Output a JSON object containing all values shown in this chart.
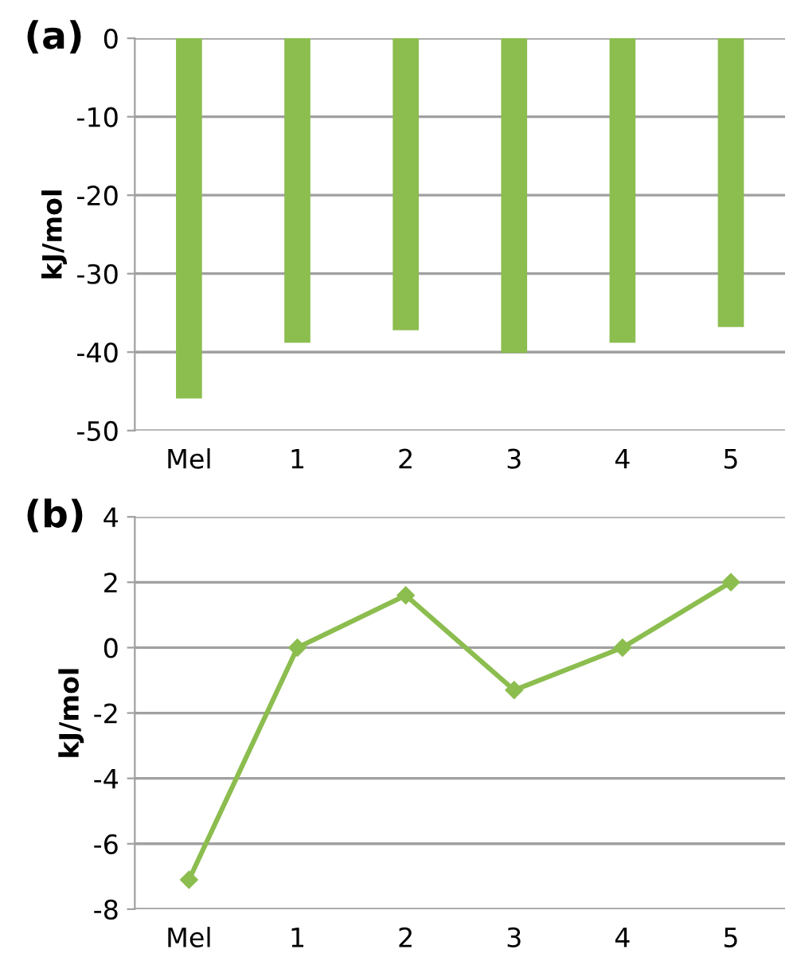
{
  "chart_data": [
    {
      "type": "bar",
      "title": "(a)",
      "ylabel": "kJ/mol",
      "categories": [
        "Mel",
        "1",
        "2",
        "3",
        "4",
        "5"
      ],
      "values": [
        -45.9,
        -38.8,
        -37.2,
        -40.1,
        -38.8,
        -36.8
      ],
      "color": "#8cbd4f",
      "ylim": [
        -50,
        0
      ],
      "yticks": [
        -50,
        -40,
        -30,
        -20,
        -10,
        0
      ],
      "grid": "y"
    },
    {
      "type": "line",
      "title": "(b)",
      "ylabel": "kJ/mol",
      "categories": [
        "Mel",
        "1",
        "2",
        "3",
        "4",
        "5"
      ],
      "values": [
        -7.1,
        0,
        1.6,
        -1.3,
        0,
        2.0
      ],
      "color": "#8cbd4f",
      "ylim": [
        -8,
        4
      ],
      "yticks": [
        -8,
        -6,
        -4,
        -2,
        0,
        2,
        4
      ],
      "grid": "y",
      "marker": "diamond",
      "line_style": "solid"
    }
  ]
}
